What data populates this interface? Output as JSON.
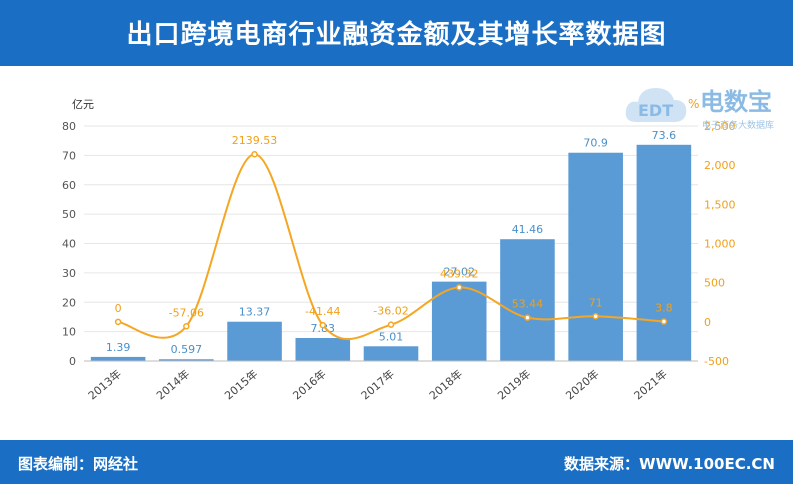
{
  "header": {
    "title": "出口跨境电商行业融资金额及其增长率数据图"
  },
  "footer": {
    "left": "图表编制：网经社",
    "right": "数据来源：WWW.100EC.CN"
  },
  "watermark": {
    "logo_text": "电数宝",
    "sub_text": "电子商务大数据库",
    "badge": "EDT"
  },
  "colors": {
    "header_bg": "#1a6fc4",
    "bar": "#5b9bd5",
    "line": "#f5a623",
    "bar_label": "#4a90c8",
    "line_label": "#f0a01a"
  },
  "chart_data": {
    "type": "bar",
    "categories": [
      "2013年",
      "2014年",
      "2015年",
      "2016年",
      "2017年",
      "2018年",
      "2019年",
      "2020年",
      "2021年"
    ],
    "series": [
      {
        "name": "",
        "type": "bar",
        "axis": "left",
        "values": [
          1.39,
          0.597,
          13.37,
          7.83,
          5.01,
          27.02,
          41.46,
          70.9,
          73.6
        ],
        "labels": [
          "1.39",
          "0.597",
          "13.37",
          "7.83",
          "5.01",
          "27.02",
          "41.46",
          "70.9",
          "73.6"
        ]
      },
      {
        "name": "",
        "type": "line",
        "axis": "right",
        "values": [
          0,
          -57.06,
          2139.53,
          -41.44,
          -36.02,
          439.32,
          53.44,
          71,
          3.8
        ],
        "labels": [
          "0",
          "-57.06",
          "2139.53",
          "-41.44",
          "-36.02",
          "439.32",
          "53.44",
          "71",
          "3.8"
        ]
      }
    ],
    "y_left": {
      "unit": "亿元",
      "ylim": [
        0,
        80
      ],
      "ticks": [
        "0",
        "10",
        "20",
        "30",
        "40",
        "50",
        "60",
        "70",
        "80"
      ]
    },
    "y_right": {
      "unit": "%",
      "ylim": [
        -500,
        2500
      ],
      "ticks": [
        "-500",
        "0",
        "500",
        "1,000",
        "1,500",
        "2,000",
        "2,500"
      ]
    },
    "grid": true
  }
}
